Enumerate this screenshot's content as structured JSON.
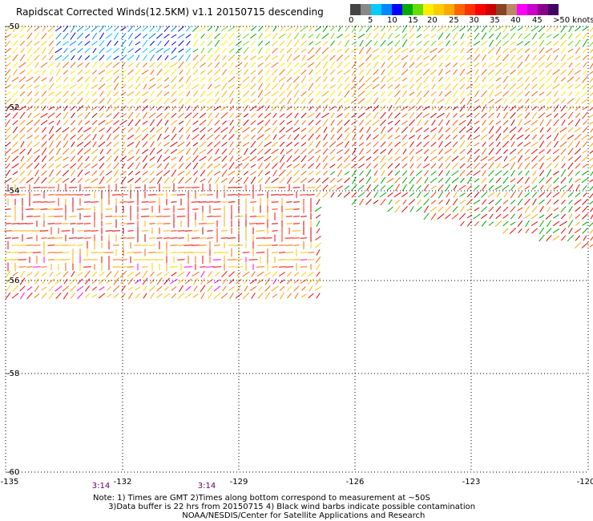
{
  "title": "Rapidscat Corrected Winds(12.5KM) v1.1 20150715 descending",
  "legend": {
    "labels": [
      "0",
      "5",
      "10",
      "15",
      "20",
      "25",
      "30",
      "35",
      "40",
      "45",
      ">50 knots"
    ],
    "colors": [
      "#444444",
      "#888888",
      "#00ccff",
      "#0088ff",
      "#0000ff",
      "#00aa00",
      "#66dd00",
      "#ffee00",
      "#ffcc00",
      "#ffaa00",
      "#ff6600",
      "#ff3300",
      "#ff0000",
      "#cc0000",
      "#884422",
      "#bb8866",
      "#ff00ff",
      "#cc00cc",
      "#880088",
      "#440066"
    ]
  },
  "map": {
    "lat_labels": [
      "-50",
      "-52",
      "-54",
      "-56",
      "-58",
      "-60"
    ],
    "lon_labels": [
      "-135",
      "-132",
      "-129",
      "-126",
      "-123",
      "-120"
    ],
    "time_labels": [
      "3:14",
      "3:14"
    ]
  },
  "notes": {
    "line1": "Note: 1) Times are GMT 2)Times along bottom correspond to measurement at ~50S",
    "line2": "      3)Data buffer is 22 hrs from 20150715 4) Black wind barbs indicate possible contamination",
    "line3": "                                   NOAA/NESDIS/Center for Satellite Applications and Research"
  }
}
